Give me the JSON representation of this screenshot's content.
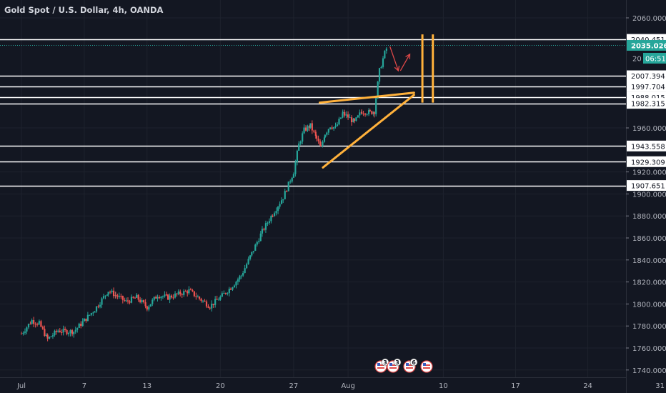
{
  "header": {
    "symbol_title": "Gold Spot / U.S. Dollar, 4h, OANDA"
  },
  "colors": {
    "background": "#131722",
    "up": "#26a69a",
    "down": "#ef5350",
    "level_line": "#ffffff",
    "triangle": "#ffb13b",
    "arrow": "#e04848",
    "price_tag": "#26a69a",
    "axis_text": "#b2b5be",
    "grid": "#1e222d"
  },
  "chart_data": {
    "type": "candlestick",
    "title": "Gold Spot / U.S. Dollar, 4h, OANDA",
    "xlabel": "",
    "ylabel": "",
    "ylim": [
      1728,
      2071
    ],
    "grid": true,
    "y_ticks": [
      "2060.000",
      "1960.000",
      "1920.000",
      "1900.000",
      "1880.000",
      "1860.000",
      "1840.000",
      "1820.000",
      "1800.000",
      "1780.000",
      "1760.000",
      "1740.000"
    ],
    "x_ticks": [
      {
        "label": "Jul",
        "day": 0
      },
      {
        "label": "7",
        "day": 6
      },
      {
        "label": "13",
        "day": 12
      },
      {
        "label": "20",
        "day": 19
      },
      {
        "label": "27",
        "day": 26
      },
      {
        "label": "Aug",
        "day": 31.2
      },
      {
        "label": "10",
        "day": 40.3
      },
      {
        "label": "17",
        "day": 47.2
      },
      {
        "label": "24",
        "day": 54.1
      },
      {
        "label": "31",
        "day": 61.0
      }
    ],
    "levels": [
      "2040.451",
      "2007.394",
      "1997.704",
      "1988.015",
      "1982.315",
      "1943.558",
      "1929.309",
      "1907.651"
    ],
    "current_price": "2035.026",
    "countdown": "06:51",
    "hidden_tag_prefix": "20",
    "event_badges": [
      "3",
      "3",
      "6"
    ],
    "closes": [
      {
        "day": 0,
        "close": 1773
      },
      {
        "day": 1,
        "close": 1785
      },
      {
        "day": 1.7,
        "close": 1782
      },
      {
        "day": 2.5,
        "close": 1768
      },
      {
        "day": 3,
        "close": 1772
      },
      {
        "day": 3.5,
        "close": 1776
      },
      {
        "day": 4,
        "close": 1775
      },
      {
        "day": 5,
        "close": 1775
      },
      {
        "day": 6,
        "close": 1785
      },
      {
        "day": 7,
        "close": 1795
      },
      {
        "day": 8.3,
        "close": 1812
      },
      {
        "day": 9,
        "close": 1808
      },
      {
        "day": 10,
        "close": 1802
      },
      {
        "day": 11,
        "close": 1806
      },
      {
        "day": 12,
        "close": 1797
      },
      {
        "day": 13,
        "close": 1808
      },
      {
        "day": 14,
        "close": 1806
      },
      {
        "day": 15,
        "close": 1809
      },
      {
        "day": 16,
        "close": 1812
      },
      {
        "day": 17,
        "close": 1805
      },
      {
        "day": 18,
        "close": 1798
      },
      {
        "day": 19,
        "close": 1806
      },
      {
        "day": 20,
        "close": 1815
      },
      {
        "day": 21,
        "close": 1826
      },
      {
        "day": 22,
        "close": 1846
      },
      {
        "day": 23,
        "close": 1866
      },
      {
        "day": 24,
        "close": 1882
      },
      {
        "day": 25,
        "close": 1897
      },
      {
        "day": 26,
        "close": 1920
      },
      {
        "day": 26.5,
        "close": 1945
      },
      {
        "day": 27,
        "close": 1958
      },
      {
        "day": 27.6,
        "close": 1962
      },
      {
        "day": 28.2,
        "close": 1950
      },
      {
        "day": 28.6,
        "close": 1942
      },
      {
        "day": 29,
        "close": 1955
      },
      {
        "day": 29.5,
        "close": 1962
      },
      {
        "day": 30,
        "close": 1960
      },
      {
        "day": 30.7,
        "close": 1973
      },
      {
        "day": 31.2,
        "close": 1970
      },
      {
        "day": 31.8,
        "close": 1965
      },
      {
        "day": 32.5,
        "close": 1975
      },
      {
        "day": 33.3,
        "close": 1974
      },
      {
        "day": 33.7,
        "close": 1975
      },
      {
        "day": 34.2,
        "close": 2012
      },
      {
        "day": 34.7,
        "close": 2028
      },
      {
        "day": 35,
        "close": 2035
      }
    ],
    "annotations": {
      "triangle": {
        "upper": [
          {
            "day": 28.5,
            "price": 1983
          },
          {
            "day": 37.5,
            "price": 1992
          }
        ],
        "lower": [
          {
            "day": 28.8,
            "price": 1924
          },
          {
            "day": 37.5,
            "price": 1990
          }
        ],
        "verticals": [
          {
            "day": 38.3,
            "top": 2045,
            "bottom": 1983
          },
          {
            "day": 39.3,
            "top": 2045,
            "bottom": 1983
          }
        ]
      },
      "arrows": [
        {
          "points": [
            {
              "day": 35.2,
              "price": 2034
            },
            {
              "day": 36.0,
              "price": 2012
            }
          ],
          "head": true
        },
        {
          "points": [
            {
              "day": 36.2,
              "price": 2012
            },
            {
              "day": 37.1,
              "price": 2027
            }
          ],
          "head": true
        }
      ]
    }
  }
}
